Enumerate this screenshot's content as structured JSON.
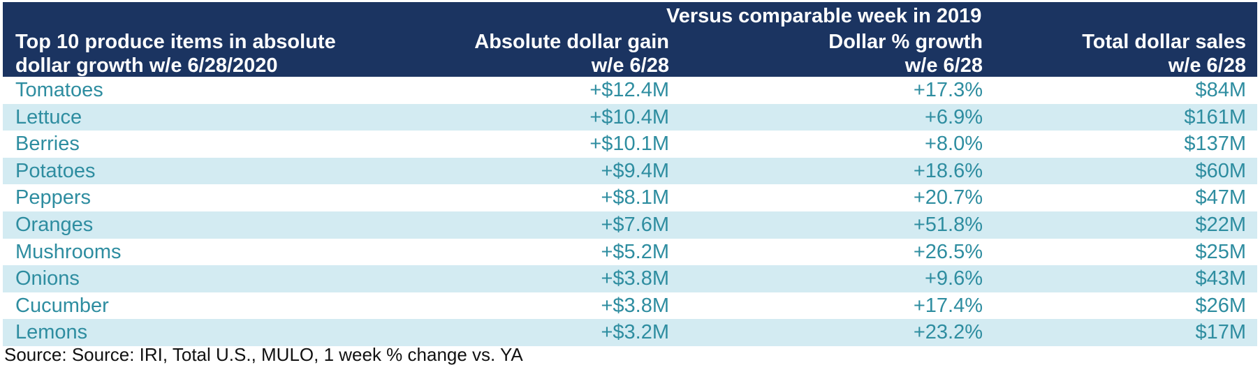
{
  "table": {
    "super_header": "Versus comparable week in 2019",
    "headers": {
      "item_line1": "Top 10 produce items in absolute",
      "item_line2": "dollar growth w/e 6/28/2020",
      "abs_line1": "Absolute dollar gain",
      "abs_line2": "w/e 6/28",
      "pct_line1": "Dollar % growth",
      "pct_line2": "w/e 6/28",
      "tot_line1": "Total dollar sales",
      "tot_line2": "w/e 6/28"
    },
    "rows": [
      {
        "item": "Tomatoes",
        "abs": "+$12.4M",
        "pct": "+17.3%",
        "tot": "$84M"
      },
      {
        "item": "Lettuce",
        "abs": "+$10.4M",
        "pct": "+6.9%",
        "tot": "$161M"
      },
      {
        "item": "Berries",
        "abs": "+$10.1M",
        "pct": "+8.0%",
        "tot": "$137M"
      },
      {
        "item": "Potatoes",
        "abs": "+$9.4M",
        "pct": "+18.6%",
        "tot": "$60M"
      },
      {
        "item": "Peppers",
        "abs": "+$8.1M",
        "pct": "+20.7%",
        "tot": "$47M"
      },
      {
        "item": "Oranges",
        "abs": "+$7.6M",
        "pct": "+51.8%",
        "tot": "$22M"
      },
      {
        "item": "Mushrooms",
        "abs": "+$5.2M",
        "pct": "+26.5%",
        "tot": "$25M"
      },
      {
        "item": "Onions",
        "abs": "+$3.8M",
        "pct": "+9.6%",
        "tot": "$43M"
      },
      {
        "item": "Cucumber",
        "abs": "+$3.8M",
        "pct": "+17.4%",
        "tot": "$26M"
      },
      {
        "item": "Lemons",
        "abs": "+$3.2M",
        "pct": "+23.2%",
        "tot": "$17M"
      }
    ]
  },
  "source": "Source: Source: IRI, Total U.S., MULO, 1 week % change vs. YA",
  "colors": {
    "header_bg": "#1b3461",
    "header_text": "#ffffff",
    "row_text": "#2e8da0",
    "stripe_bg": "#d3ebf2"
  }
}
